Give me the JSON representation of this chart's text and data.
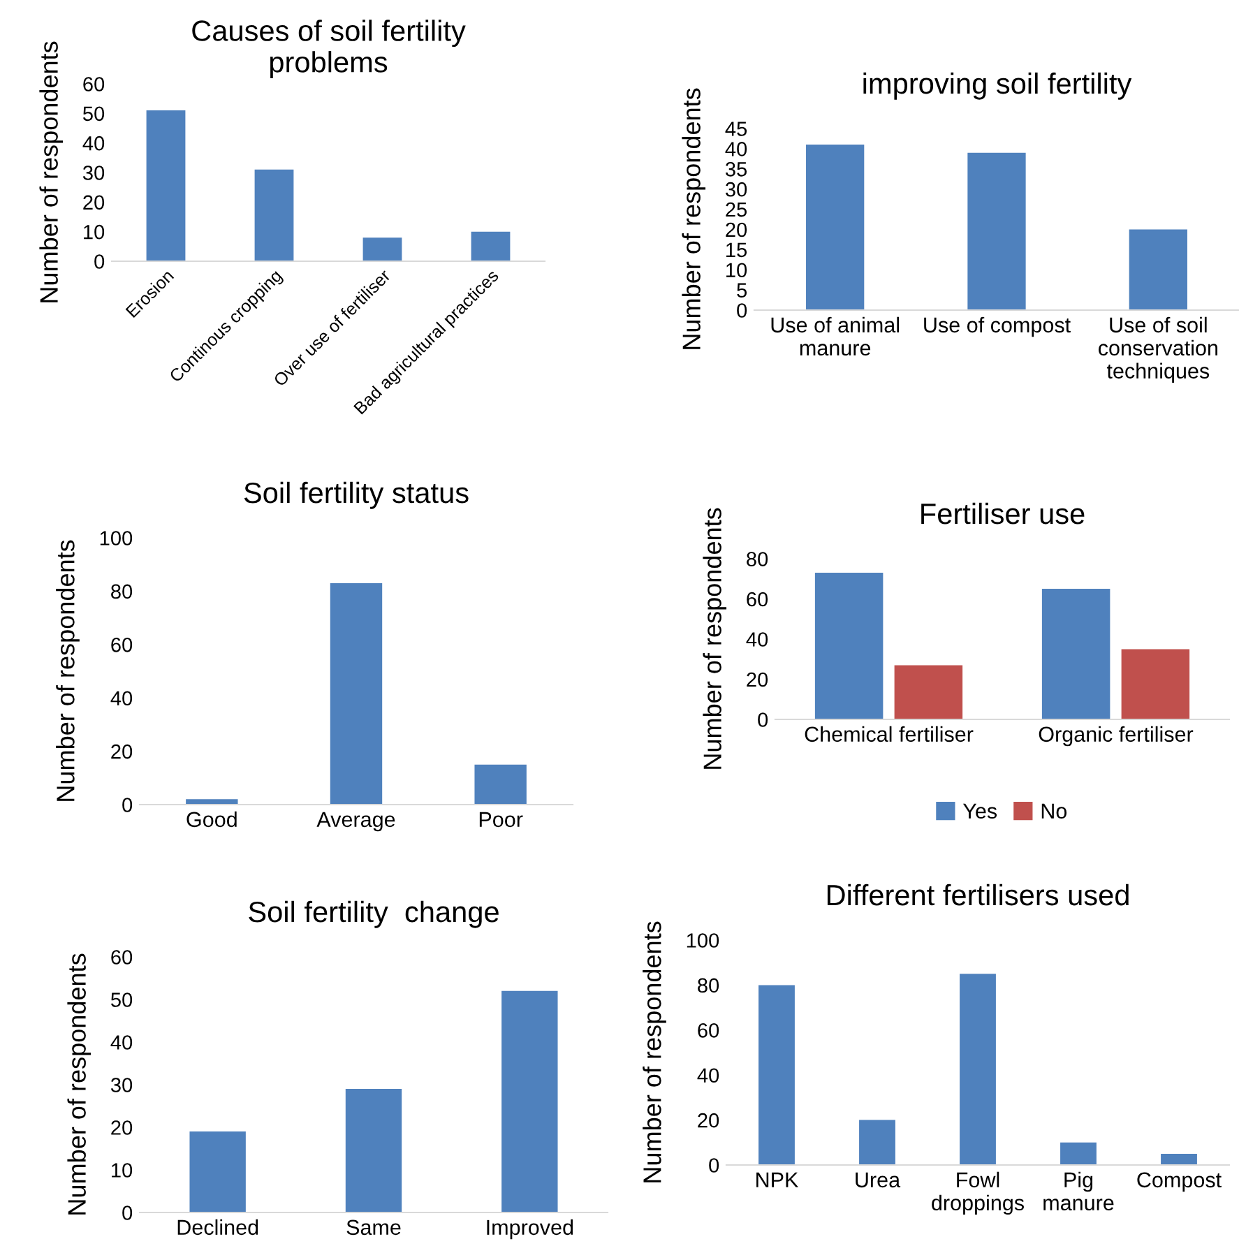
{
  "chart_data": [
    {
      "type": "bar",
      "title": "Causes of soil fertility\nproblems",
      "ylabel": "Number of respondents",
      "categories": [
        "Erosion",
        "Continous cropping",
        "Over use of fertiliser",
        "Bad agricultural practices"
      ],
      "values": [
        51,
        31,
        8,
        10
      ],
      "color": "#4f81bd",
      "ylim": [
        0,
        60
      ],
      "yticks": [
        0,
        10,
        20,
        30,
        40,
        50,
        60
      ],
      "grid": false,
      "legend": false
    },
    {
      "type": "bar",
      "title": "improving soil fertility",
      "ylabel": "Number of respondents",
      "categories": [
        "Use of animal\nmanure",
        "Use of compost",
        "Use of soil\nconservation\ntechniques"
      ],
      "values": [
        41,
        39,
        20
      ],
      "color": "#4f81bd",
      "ylim": [
        0,
        45
      ],
      "yticks": [
        0,
        5,
        10,
        15,
        20,
        25,
        30,
        35,
        40,
        45
      ],
      "grid": false,
      "legend": false
    },
    {
      "type": "bar",
      "title": "Soil fertility status",
      "ylabel": "Number of respondents",
      "categories": [
        "Good",
        "Average",
        "Poor"
      ],
      "values": [
        2,
        83,
        15
      ],
      "color": "#4f81bd",
      "ylim": [
        0,
        100
      ],
      "yticks": [
        0,
        20,
        40,
        60,
        80,
        100
      ],
      "grid": false,
      "legend": false
    },
    {
      "type": "bar",
      "title": "Fertiliser use",
      "ylabel": "Number of respondents",
      "categories": [
        "Chemical fertiliser",
        "Organic fertiliser"
      ],
      "series": [
        {
          "name": "Yes",
          "color": "#4f81bd",
          "values": [
            73,
            65
          ]
        },
        {
          "name": "No",
          "color": "#c0504d",
          "values": [
            27,
            35
          ]
        }
      ],
      "ylim": [
        0,
        80
      ],
      "yticks": [
        0,
        20,
        40,
        60,
        80
      ],
      "grid": false,
      "legend": "bottom"
    },
    {
      "type": "bar",
      "title": "Soil fertility  change",
      "ylabel": "Number of respondents",
      "categories": [
        "Declined",
        "Same",
        "Improved"
      ],
      "values": [
        19,
        29,
        52
      ],
      "color": "#4f81bd",
      "ylim": [
        0,
        60
      ],
      "yticks": [
        0,
        10,
        20,
        30,
        40,
        50,
        60
      ],
      "grid": false,
      "legend": false
    },
    {
      "type": "bar",
      "title": "Different fertilisers used",
      "ylabel": "Number of respondents",
      "categories": [
        "NPK",
        "Urea",
        "Fowl\ndroppings",
        "Pig\nmanure",
        "Compost"
      ],
      "values": [
        80,
        20,
        85,
        10,
        5
      ],
      "color": "#4f81bd",
      "ylim": [
        0,
        100
      ],
      "yticks": [
        0,
        20,
        40,
        60,
        80,
        100
      ],
      "grid": false,
      "legend": false
    }
  ]
}
